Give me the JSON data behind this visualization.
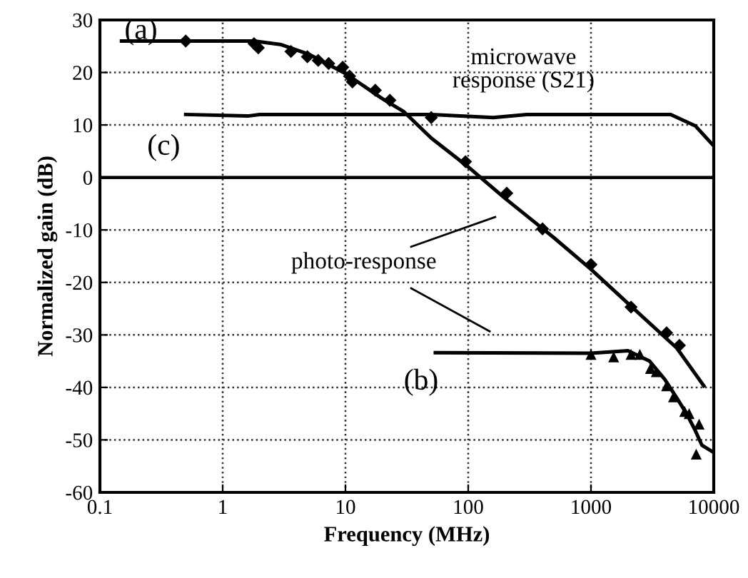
{
  "chart_data": {
    "type": "line",
    "xlabel": "Frequency (MHz)",
    "ylabel": "Normalized gain (dB)",
    "log": "x",
    "xlim": [
      0.1,
      10000
    ],
    "xticks": [
      0.1,
      1,
      10,
      100,
      1000,
      10000
    ],
    "ylim": [
      -60,
      30
    ],
    "yticks": [
      -60,
      -50,
      -40,
      -30,
      -20,
      -10,
      0,
      10,
      20,
      30
    ],
    "grid": true,
    "ref_lines": [
      {
        "axis": "y",
        "value": 0,
        "color": "#000000",
        "line_style": "solid"
      }
    ],
    "series": [
      {
        "type": "scatter",
        "marker": "diamond",
        "color": "#000000",
        "x": [
          0.5,
          1.8,
          1.95,
          3.6,
          4.9,
          6.0,
          7.3,
          9.5,
          10.8,
          11.4,
          17.5,
          23,
          50,
          95,
          206,
          403,
          1000,
          2120,
          4130,
          5250
        ],
        "values": [
          26,
          25.5,
          24.7,
          24,
          23,
          22.3,
          21.7,
          21,
          19.3,
          18.2,
          16.6,
          14.7,
          11.4,
          3,
          -3,
          -9.8,
          -16.6,
          -24.7,
          -29.6,
          -32
        ]
      },
      {
        "color": "#000000",
        "x": [
          0.15,
          1.8,
          3,
          5,
          10,
          20,
          30,
          50,
          100,
          200,
          500,
          1000,
          2000,
          5000,
          8300
        ],
        "values": [
          26,
          26,
          25.3,
          23.5,
          19.8,
          15,
          12.5,
          7.5,
          2,
          -4,
          -11.5,
          -17.5,
          -24,
          -32.5,
          -39.7
        ]
      },
      {
        "type": "scatter",
        "marker": "triangle",
        "color": "#000000",
        "x": [
          1000,
          1530,
          2120,
          2500,
          3050,
          3400,
          4130,
          4700,
          5800,
          6300,
          7600,
          7200
        ],
        "values": [
          -33.7,
          -34.2,
          -33.7,
          -33.7,
          -36.4,
          -37,
          -39.7,
          -41.8,
          -44.6,
          -45,
          -47,
          -52.7
        ]
      },
      {
        "color": "#000000",
        "x": [
          54,
          1000,
          2000,
          3000,
          4000,
          5000,
          6000,
          7000,
          8000,
          10000
        ],
        "values": [
          -33.4,
          -33.5,
          -33,
          -35,
          -38.5,
          -42,
          -45,
          -48,
          -51,
          -52.4
        ]
      },
      {
        "color": "#000000",
        "x": [
          0.5,
          1.6,
          2,
          10,
          50,
          160,
          300,
          1000,
          4460,
          7100,
          10000
        ],
        "values": [
          12,
          11.7,
          12,
          12,
          12,
          11.4,
          12,
          12,
          12,
          9.8,
          6
        ]
      }
    ],
    "annotations": [
      "(a)",
      "(c)",
      "(b)",
      "microwave\nresponse (S21)",
      "photo-response"
    ]
  }
}
